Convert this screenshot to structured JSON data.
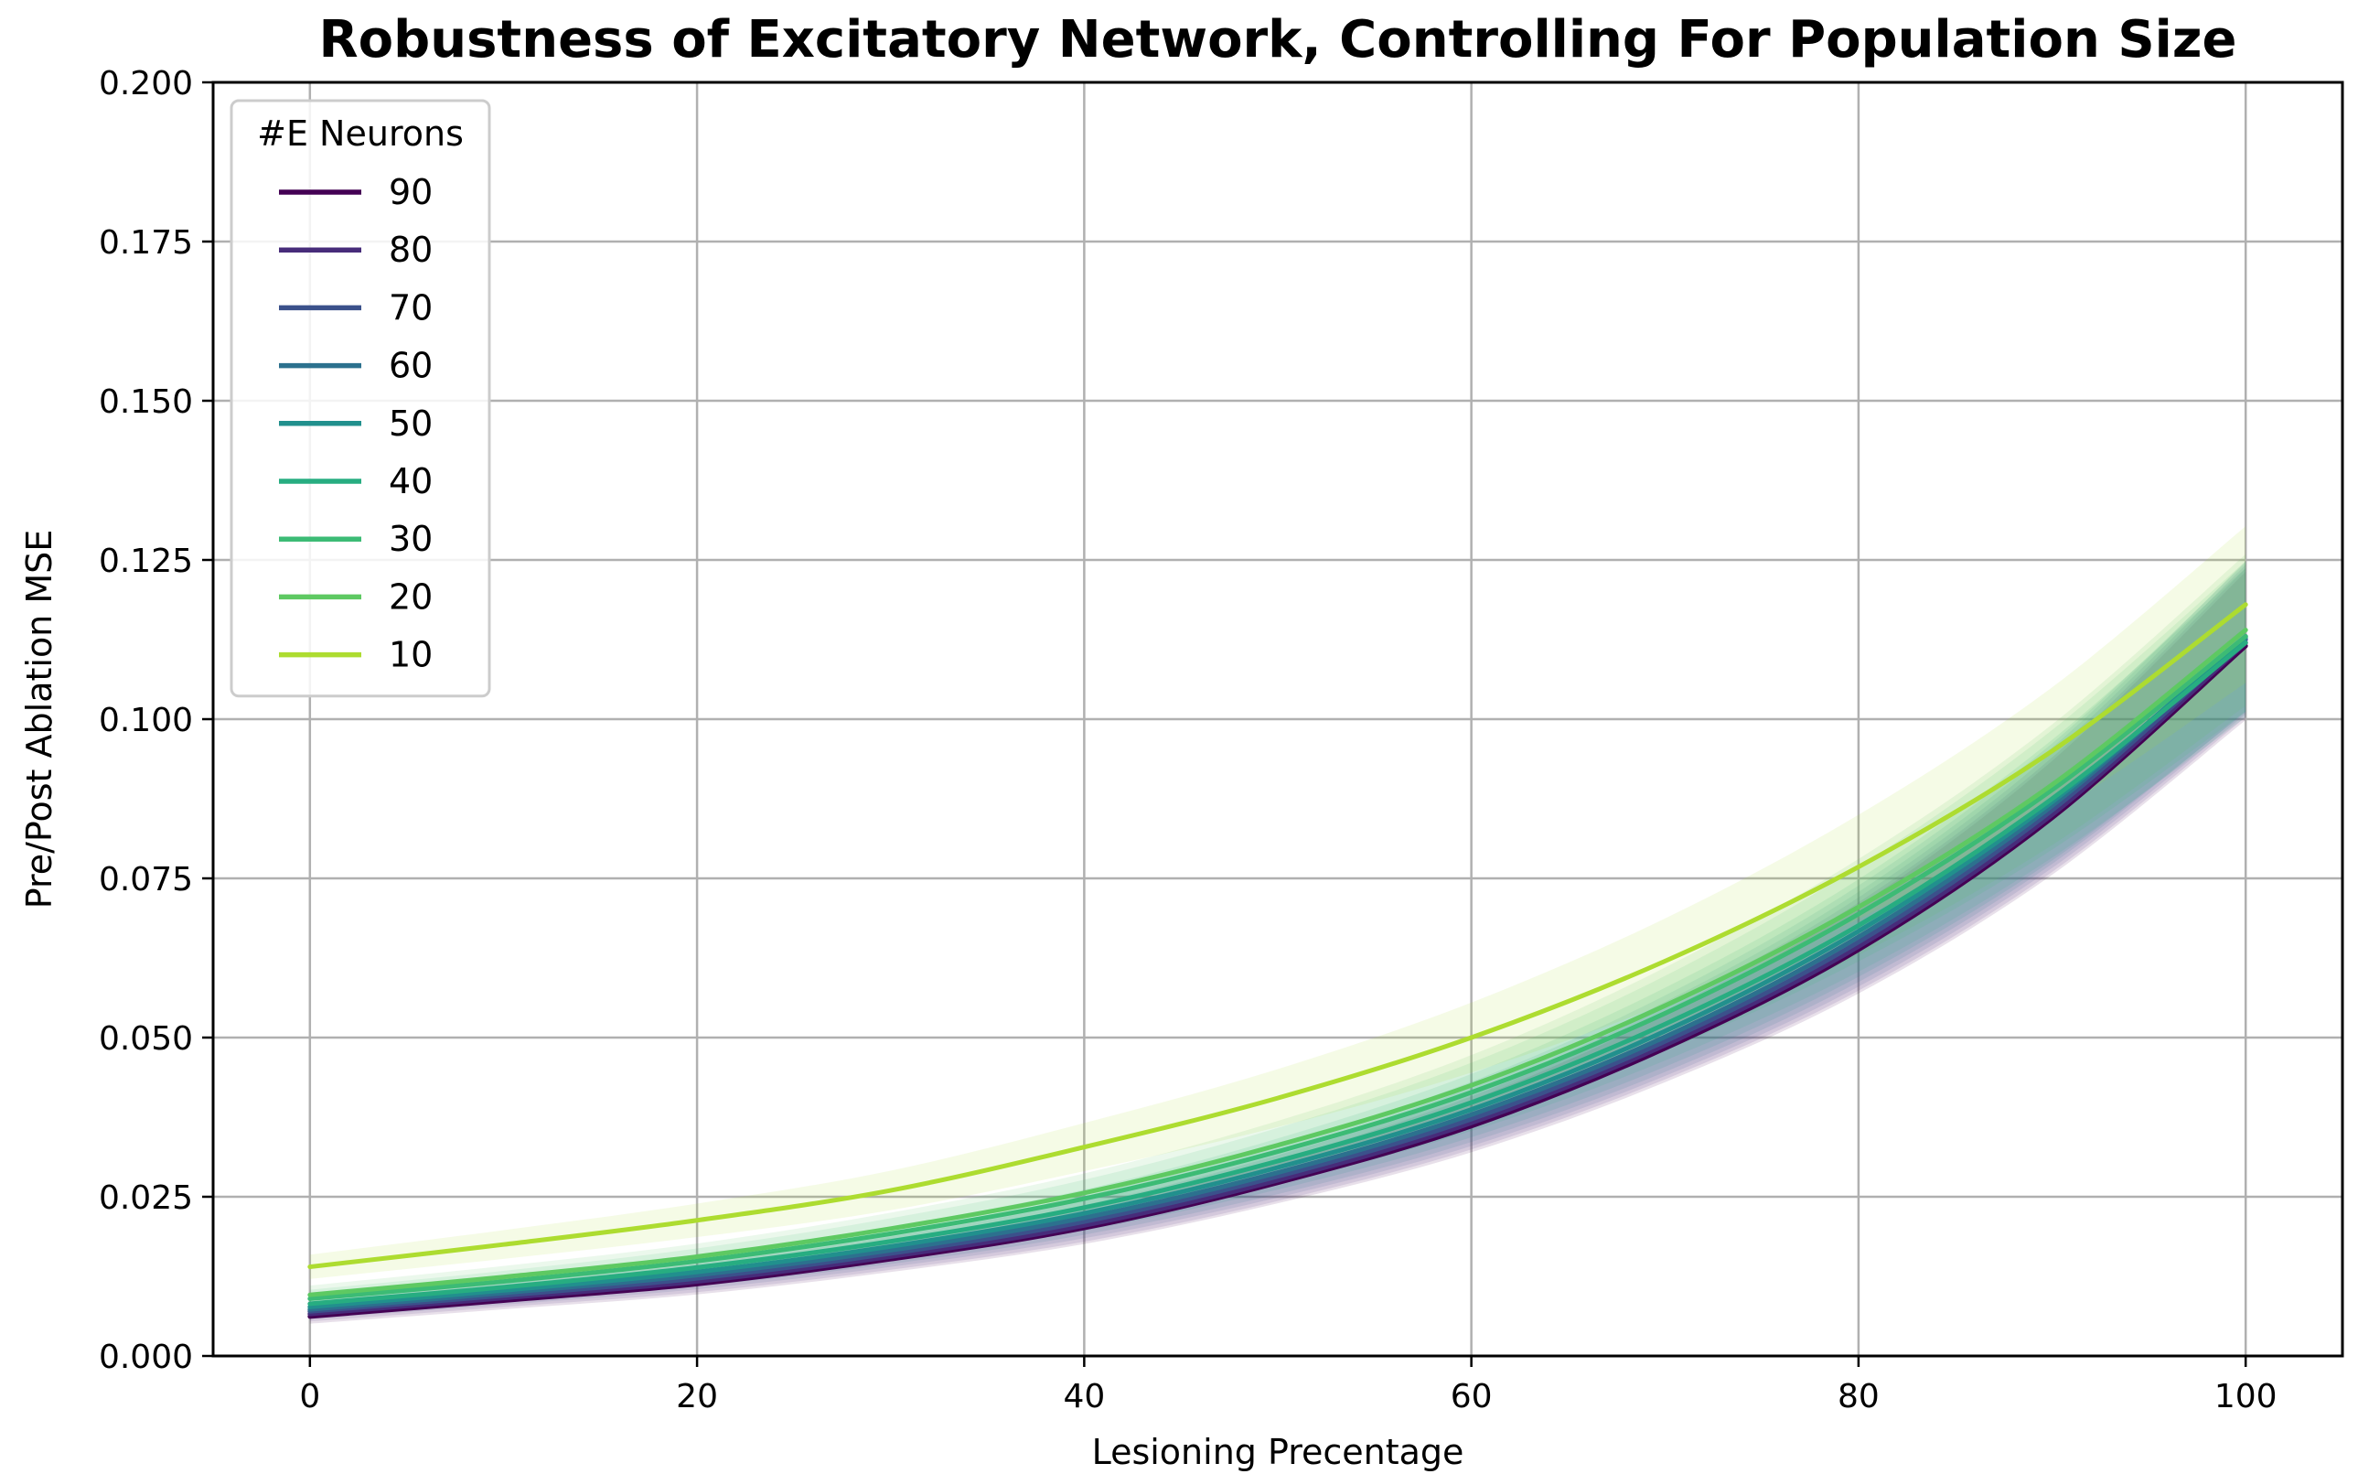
{
  "chart_data": {
    "type": "line",
    "title": "Robustness of Excitatory Network, Controlling For Population Size",
    "xlabel": "Lesioning Precentage",
    "ylabel": "Pre/Post Ablation MSE",
    "xlim": [
      -5,
      105
    ],
    "ylim": [
      0.0,
      0.2
    ],
    "xticks": [
      "0",
      "20",
      "40",
      "60",
      "80",
      "100"
    ],
    "yticks": [
      "0.000",
      "0.025",
      "0.050",
      "0.075",
      "0.100",
      "0.125",
      "0.150",
      "0.175",
      "0.200"
    ],
    "grid": true,
    "legend_title": "#E Neurons",
    "legend_position": "upper-left",
    "x": [
      0,
      10,
      20,
      30,
      40,
      50,
      60,
      70,
      80,
      90,
      100
    ],
    "series": [
      {
        "name": "90",
        "color": "#440154",
        "values": [
          0.0062,
          0.0087,
          0.0113,
          0.0152,
          0.0201,
          0.0272,
          0.0361,
          0.0483,
          0.0638,
          0.0845,
          0.1115
        ]
      },
      {
        "name": "80",
        "color": "#472c7a",
        "values": [
          0.0066,
          0.0091,
          0.0117,
          0.0156,
          0.0205,
          0.0276,
          0.0366,
          0.0488,
          0.0643,
          0.085,
          0.112
        ]
      },
      {
        "name": "70",
        "color": "#3b518b",
        "values": [
          0.007,
          0.0095,
          0.0122,
          0.0161,
          0.0211,
          0.0282,
          0.0372,
          0.0494,
          0.065,
          0.0857,
          0.1125
        ]
      },
      {
        "name": "60",
        "color": "#2c718e",
        "values": [
          0.0073,
          0.0099,
          0.0127,
          0.0166,
          0.0217,
          0.0288,
          0.0379,
          0.0501,
          0.0658,
          0.0864,
          0.113
        ]
      },
      {
        "name": "50",
        "color": "#21908d",
        "values": [
          0.0077,
          0.0103,
          0.0132,
          0.0172,
          0.0224,
          0.0296,
          0.0387,
          0.051,
          0.0667,
          0.087,
          0.1128
        ]
      },
      {
        "name": "40",
        "color": "#27ad81",
        "values": [
          0.0082,
          0.0108,
          0.0139,
          0.018,
          0.0233,
          0.0306,
          0.0398,
          0.0521,
          0.0676,
          0.0875,
          0.112
        ]
      },
      {
        "name": "30",
        "color": "#3cbb75",
        "values": [
          0.009,
          0.0117,
          0.0149,
          0.0192,
          0.0247,
          0.0321,
          0.0414,
          0.0538,
          0.0694,
          0.0889,
          0.113
        ]
      },
      {
        "name": "20",
        "color": "#5ec962",
        "values": [
          0.0096,
          0.0124,
          0.0156,
          0.02,
          0.0256,
          0.0331,
          0.0425,
          0.055,
          0.0705,
          0.0897,
          0.114
        ]
      },
      {
        "name": "10",
        "color": "#addc30",
        "values": [
          0.014,
          0.0175,
          0.0213,
          0.026,
          0.0328,
          0.0405,
          0.05,
          0.062,
          0.0768,
          0.095,
          0.118
        ]
      }
    ]
  }
}
